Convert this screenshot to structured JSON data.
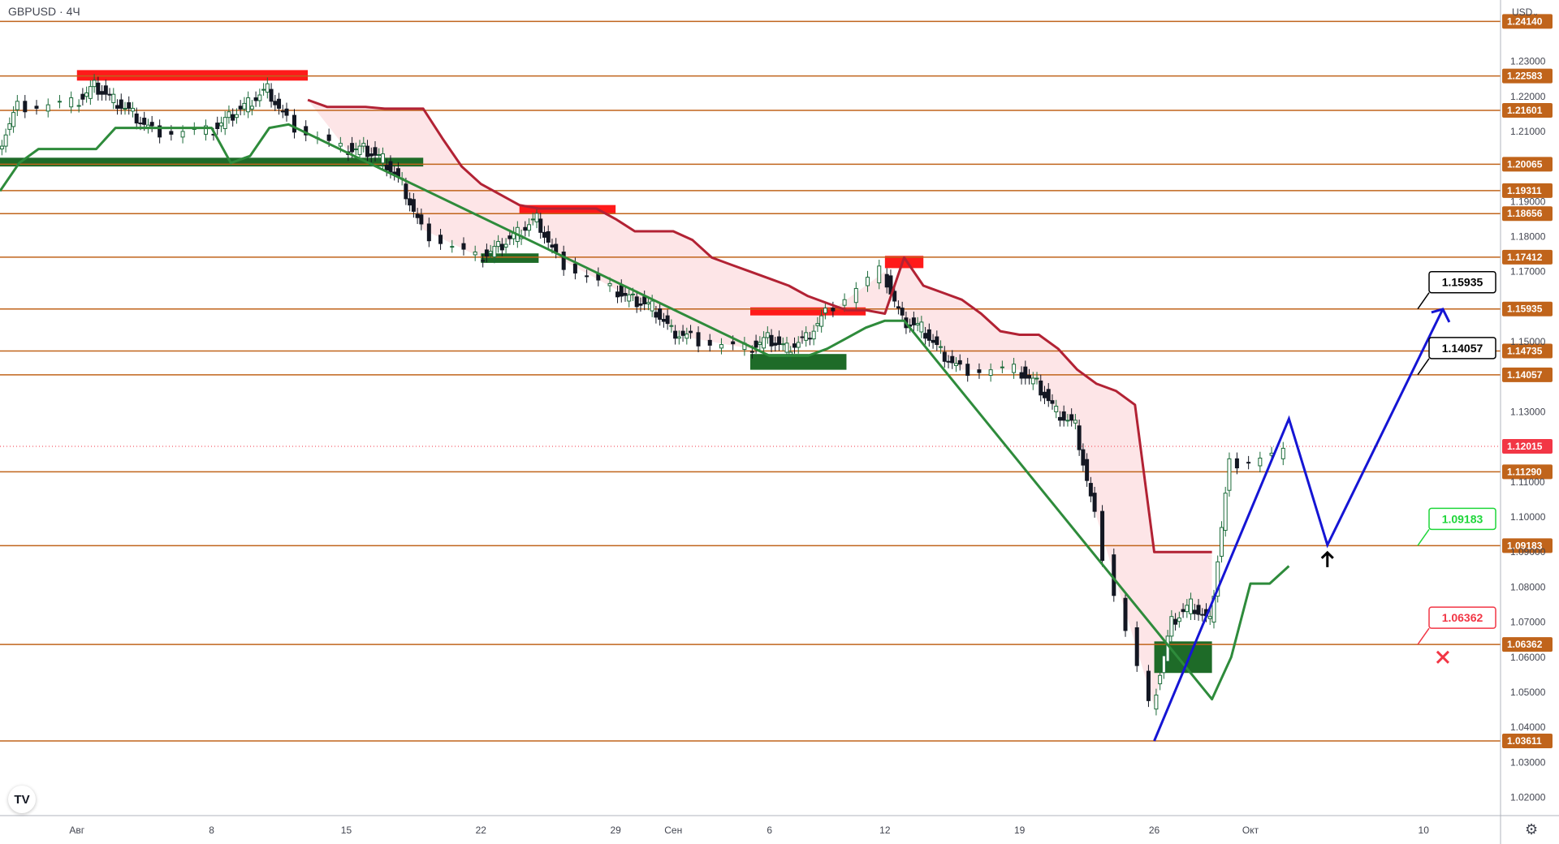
{
  "header": {
    "symbol": "GBPUSD · 4Ч",
    "currency": "USD",
    "currency_menu_icon": "chevron-down-icon"
  },
  "footer": {
    "logo": "TV",
    "settings_icon": "gear-icon"
  },
  "colors": {
    "level_line": "#c0641b",
    "level_label_bg": "#c0641b",
    "last_price_bg": "#f23645",
    "up_candle": "#1c6b3a",
    "down_candle": "#131722",
    "resistance_zone": "#ff1a1a",
    "support_zone": "#1e6b28",
    "support_zone_light": "#2d8a3a",
    "trend_down": "#b22234",
    "trend_up": "#2e8b3b",
    "fill_down": "#fde2e4",
    "fill_up": "#e8f5e9",
    "forecast": "#1515d4",
    "target_label": "#000000",
    "entry_label": "#1fd63a",
    "stop_label": "#f23645"
  },
  "chart_data": {
    "type": "line",
    "symbol": "GBPUSD",
    "interval": "4Ч",
    "y_range": [
      1.0148,
      1.2475
    ],
    "x_range": [
      "2022-07-28",
      "2022-10-14"
    ],
    "y_ticks": [
      "1.23000",
      "1.22000",
      "1.21000",
      "1.19000",
      "1.18000",
      "1.17000",
      "1.15000",
      "1.13000",
      "1.11000",
      "1.10000",
      "1.09000",
      "1.08000",
      "1.07000",
      "1.06000",
      "1.05000",
      "1.04000",
      "1.03000",
      "1.02000"
    ],
    "x_ticks": [
      {
        "date": "2022-08-01",
        "label": "Авг"
      },
      {
        "date": "2022-08-08",
        "label": "8"
      },
      {
        "date": "2022-08-15",
        "label": "15"
      },
      {
        "date": "2022-08-22",
        "label": "22"
      },
      {
        "date": "2022-08-29",
        "label": "29"
      },
      {
        "date": "2022-09-01",
        "label": "Сен"
      },
      {
        "date": "2022-09-06",
        "label": "6"
      },
      {
        "date": "2022-09-12",
        "label": "12"
      },
      {
        "date": "2022-09-19",
        "label": "19"
      },
      {
        "date": "2022-09-26",
        "label": "26"
      },
      {
        "date": "2022-10-01",
        "label": "Окт"
      },
      {
        "date": "2022-10-10",
        "label": "10"
      }
    ],
    "horizontal_levels": [
      "1.24140",
      "1.22583",
      "1.21601",
      "1.20065",
      "1.19311",
      "1.18656",
      "1.17412",
      "1.15935",
      "1.14735",
      "1.14057",
      "1.11290",
      "1.09183",
      "1.06362",
      "1.03611"
    ],
    "last_price": "1.12015",
    "price_series": {
      "dates": [
        "2022-07-28",
        "2022-07-29",
        "2022-08-01",
        "2022-08-02",
        "2022-08-03",
        "2022-08-04",
        "2022-08-05",
        "2022-08-08",
        "2022-08-09",
        "2022-08-10",
        "2022-08-11",
        "2022-08-12",
        "2022-08-15",
        "2022-08-16",
        "2022-08-17",
        "2022-08-18",
        "2022-08-19",
        "2022-08-22",
        "2022-08-23",
        "2022-08-24",
        "2022-08-25",
        "2022-08-26",
        "2022-08-29",
        "2022-08-30",
        "2022-08-31",
        "2022-09-01",
        "2022-09-02",
        "2022-09-05",
        "2022-09-06",
        "2022-09-07",
        "2022-09-08",
        "2022-09-09",
        "2022-09-12",
        "2022-09-13",
        "2022-09-14",
        "2022-09-15",
        "2022-09-16",
        "2022-09-19",
        "2022-09-20",
        "2022-09-21",
        "2022-09-22",
        "2022-09-23",
        "2022-09-26",
        "2022-09-27",
        "2022-09-28",
        "2022-09-29",
        "2022-09-30",
        "2022-10-03"
      ],
      "values": [
        1.205,
        1.217,
        1.218,
        1.223,
        1.219,
        1.215,
        1.21,
        1.21,
        1.214,
        1.218,
        1.222,
        1.213,
        1.205,
        1.205,
        1.202,
        1.195,
        1.182,
        1.174,
        1.177,
        1.181,
        1.185,
        1.174,
        1.165,
        1.162,
        1.16,
        1.153,
        1.151,
        1.148,
        1.151,
        1.148,
        1.151,
        1.158,
        1.17,
        1.156,
        1.154,
        1.147,
        1.142,
        1.142,
        1.138,
        1.13,
        1.126,
        1.1,
        1.046,
        1.07,
        1.075,
        1.07,
        1.115,
        1.118
      ]
    },
    "annotations": [
      {
        "price": "1.15935",
        "role": "target"
      },
      {
        "price": "1.14057",
        "role": "target"
      },
      {
        "price": "1.09183",
        "role": "entry"
      },
      {
        "price": "1.06362",
        "role": "stop"
      }
    ],
    "forecast_path": [
      {
        "date": "2022-09-26",
        "price": 1.0361
      },
      {
        "date": "2022-10-03",
        "price": 1.128
      },
      {
        "date": "2022-10-05",
        "price": 1.092
      },
      {
        "date": "2022-10-11",
        "price": 1.1593
      }
    ],
    "markers": [
      {
        "type": "arrow-up",
        "date": "2022-10-05",
        "price": 1.088
      },
      {
        "type": "cross",
        "date": "2022-10-11",
        "price": 1.06
      }
    ],
    "zones": [
      {
        "kind": "resistance",
        "from": "2022-08-01",
        "to": "2022-08-13",
        "low": 1.2245,
        "high": 1.2275
      },
      {
        "kind": "support",
        "from": "2022-07-28",
        "to": "2022-08-19",
        "low": 1.2,
        "high": 1.2025
      },
      {
        "kind": "resistance",
        "from": "2022-08-24",
        "to": "2022-08-29",
        "low": 1.1865,
        "high": 1.189
      },
      {
        "kind": "support",
        "from": "2022-08-22",
        "to": "2022-08-25",
        "low": 1.1725,
        "high": 1.1752
      },
      {
        "kind": "resistance",
        "from": "2022-09-05",
        "to": "2022-09-11",
        "low": 1.1575,
        "high": 1.1598
      },
      {
        "kind": "support",
        "from": "2022-09-05",
        "to": "2022-09-10",
        "low": 1.142,
        "high": 1.1465
      },
      {
        "kind": "resistance",
        "from": "2022-09-12",
        "to": "2022-09-14",
        "low": 1.171,
        "high": 1.1745
      },
      {
        "kind": "support",
        "from": "2022-09-26",
        "to": "2022-09-29",
        "low": 1.0555,
        "high": 1.0645
      }
    ],
    "trend_down_line": {
      "dates": [
        "2022-08-13",
        "2022-08-14",
        "2022-08-15",
        "2022-08-16",
        "2022-08-17",
        "2022-08-18",
        "2022-08-19",
        "2022-08-20",
        "2022-08-21",
        "2022-08-22",
        "2022-08-23",
        "2022-08-24",
        "2022-08-25",
        "2022-08-26",
        "2022-08-27",
        "2022-08-28",
        "2022-08-29",
        "2022-08-30",
        "2022-08-31",
        "2022-09-01",
        "2022-09-02",
        "2022-09-03",
        "2022-09-04",
        "2022-09-05",
        "2022-09-06",
        "2022-09-07",
        "2022-09-08",
        "2022-09-09",
        "2022-09-10",
        "2022-09-11",
        "2022-09-12",
        "2022-09-13",
        "2022-09-14",
        "2022-09-15",
        "2022-09-16",
        "2022-09-17",
        "2022-09-18",
        "2022-09-19",
        "2022-09-20",
        "2022-09-21",
        "2022-09-22",
        "2022-09-23",
        "2022-09-24",
        "2022-09-25",
        "2022-09-26",
        "2022-09-27",
        "2022-09-28",
        "2022-09-29"
      ],
      "values": [
        1.219,
        1.217,
        1.217,
        1.217,
        1.2165,
        1.2165,
        1.2165,
        1.208,
        1.2,
        1.195,
        1.192,
        1.189,
        1.188,
        1.188,
        1.188,
        1.188,
        1.185,
        1.1815,
        1.1815,
        1.1815,
        1.179,
        1.174,
        1.172,
        1.17,
        1.168,
        1.166,
        1.163,
        1.161,
        1.159,
        1.159,
        1.158,
        1.174,
        1.166,
        1.164,
        1.162,
        1.158,
        1.153,
        1.152,
        1.152,
        1.148,
        1.142,
        1.138,
        1.136,
        1.132,
        1.09,
        1.09,
        1.09,
        1.09
      ]
    },
    "trend_up_line": {
      "dates": [
        "2022-07-28",
        "2022-07-29",
        "2022-07-30",
        "2022-08-01",
        "2022-08-02",
        "2022-08-03",
        "2022-08-04",
        "2022-08-05",
        "2022-08-06",
        "2022-08-08",
        "2022-08-09",
        "2022-08-10",
        "2022-08-11",
        "2022-08-12",
        "2022-09-06",
        "2022-09-07",
        "2022-09-08",
        "2022-09-09",
        "2022-09-10",
        "2022-09-11",
        "2022-09-12",
        "2022-09-13",
        "2022-09-29",
        "2022-09-30",
        "2022-10-01",
        "2022-10-02",
        "2022-10-03"
      ],
      "values": [
        1.193,
        1.201,
        1.205,
        1.205,
        1.205,
        1.211,
        1.211,
        1.211,
        1.211,
        1.211,
        1.201,
        1.203,
        1.211,
        1.212,
        1.146,
        1.146,
        1.146,
        1.148,
        1.151,
        1.154,
        1.156,
        1.156,
        1.048,
        1.06,
        1.081,
        1.081,
        1.086
      ]
    }
  }
}
